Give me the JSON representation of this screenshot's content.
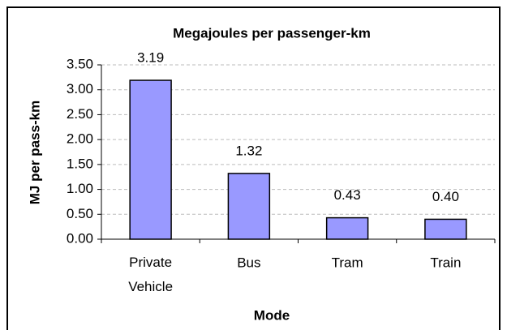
{
  "chart_data": {
    "type": "bar",
    "title": "Megajoules per passenger-km",
    "x_label": "Mode",
    "y_label": "MJ per pass-km",
    "categories": [
      "Private Vehicle",
      "Bus",
      "Tram",
      "Train"
    ],
    "values": [
      3.19,
      1.32,
      0.43,
      0.4
    ],
    "value_labels": [
      "3.19",
      "1.32",
      "0.43",
      "0.40"
    ],
    "color": "#9999ff",
    "ylim": [
      0,
      3.5
    ],
    "yticks": [
      {
        "value": 0,
        "label": "0.00"
      },
      {
        "value": 0.5,
        "label": "0.50"
      },
      {
        "value": 1,
        "label": "1.00"
      },
      {
        "value": 1.5,
        "label": "1.50"
      },
      {
        "value": 2,
        "label": "2.00"
      },
      {
        "value": 2.5,
        "label": "2.50"
      },
      {
        "value": 3,
        "label": "3.00"
      },
      {
        "value": 3.5,
        "label": "3.50"
      }
    ],
    "grid": true
  }
}
